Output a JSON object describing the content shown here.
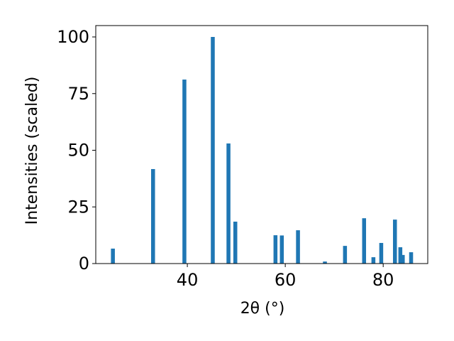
{
  "chart_data": {
    "type": "bar",
    "x_label": "2θ (°)",
    "y_label": "Intensities (scaled)",
    "x": [
      24.8,
      33.0,
      39.4,
      45.2,
      48.4,
      49.8,
      58.0,
      59.3,
      62.6,
      68.1,
      72.2,
      76.1,
      78.0,
      79.6,
      82.4,
      83.5,
      84.0,
      85.7
    ],
    "values": [
      6.6,
      41.7,
      81.2,
      100,
      53,
      18.5,
      12.5,
      12.4,
      14.7,
      0.9,
      7.8,
      20,
      2.8,
      9.1,
      19.4,
      7.2,
      3.8,
      5.0
    ],
    "bar_width": 0.8,
    "color": "#1f77b4",
    "xlim": [
      21.3,
      89.1
    ],
    "xticks": [
      40,
      60,
      80
    ],
    "ylim": [
      0,
      100
    ],
    "yticks": [
      0,
      25,
      50,
      75,
      100
    ]
  }
}
